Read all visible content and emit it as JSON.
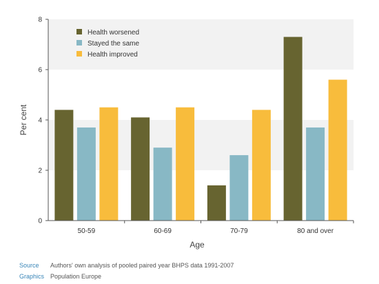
{
  "chart_data": {
    "type": "bar",
    "title": "",
    "xlabel": "Age",
    "ylabel": "Per cent",
    "ylim": [
      0,
      8
    ],
    "yticks": [
      0,
      2,
      4,
      6,
      8
    ],
    "categories": [
      "50-59",
      "60-69",
      "70-79",
      "80 and over"
    ],
    "series": [
      {
        "name": "Health worsened",
        "color": "#676430",
        "values": [
          4.4,
          4.1,
          1.4,
          7.3
        ]
      },
      {
        "name": "Stayed the same",
        "color": "#88b8c5",
        "values": [
          3.7,
          2.9,
          2.6,
          3.7
        ]
      },
      {
        "name": "Health improved",
        "color": "#f8bc3c",
        "values": [
          4.5,
          4.5,
          4.4,
          5.6
        ]
      }
    ],
    "legend_position": "top-left",
    "grid": "alternating horizontal bands",
    "band_color": "#f2f2f2",
    "axis_color": "#555555"
  },
  "footer": {
    "source_label": "Source",
    "source_text": "Authors' own analysis of pooled paired year BHPS data 1991-2007",
    "graphics_label": "Graphics",
    "graphics_text": "Population Europe"
  }
}
